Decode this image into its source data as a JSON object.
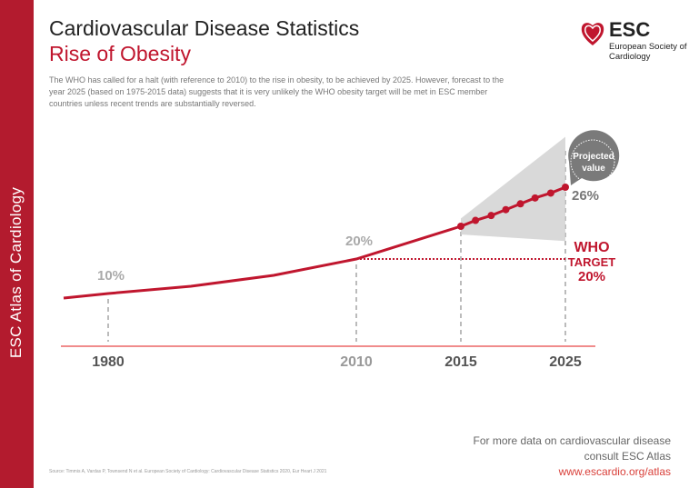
{
  "sidebar": {
    "label": "ESC Atlas of Cardiology"
  },
  "header": {
    "title": "Cardiovascular Disease Statistics",
    "subtitle": "Rise of Obesity",
    "description": "The WHO has called for a halt (with reference to 2010) to the rise in obesity, to be achieved by 2025. However, forecast to the year 2025 (based on 1975-2015 data) suggests that it is very unlikely the WHO obesity target will be met in ESC member countries unless recent trends are substantially reversed."
  },
  "logo": {
    "name": "ESC",
    "org": "European Society of Cardiology",
    "icon": "heart-icon"
  },
  "footer": {
    "more_line1": "For more data on cardiovascular disease",
    "more_line2": "consult ESC Atlas",
    "link": "www.escardio.org/atlas",
    "source": "Source: Timmis A, Vardas P, Townsend N et al. European Society of Cardiology: Cardiovascular Disease Statistics 2020, Eur Heart J 2021"
  },
  "colors": {
    "accent": "#c0162e",
    "sidebar": "#b31b2e",
    "axis": "#f08c8c",
    "gray": "#8a8a8a"
  },
  "chart_data": {
    "type": "line",
    "xlabel": "",
    "ylabel": "",
    "x_ticks": [
      "1980",
      "2010",
      "2015",
      "2025"
    ],
    "series": [
      {
        "x": [
          1975,
          1980,
          1990,
          2000,
          2010,
          2015
        ],
        "y": [
          9,
          10,
          12,
          15,
          20,
          22
        ]
      },
      {
        "x": [
          2015,
          2016.4,
          2017.9,
          2019.3,
          2020.7,
          2022.1,
          2023.6,
          2025
        ],
        "y": [
          22,
          22.6,
          23.1,
          23.7,
          24.3,
          24.9,
          25.4,
          26
        ],
        "markers": true
      }
    ],
    "projection_band": {
      "x": [
        2015,
        2025
      ],
      "upper": [
        22.8,
        31.2
      ],
      "lower": [
        21.5,
        21.1
      ]
    },
    "labels": [
      {
        "year": 1980,
        "text": "10%"
      },
      {
        "year": 2010,
        "text": "20%"
      },
      {
        "year": 2025,
        "text": "26%"
      }
    ],
    "callout": {
      "line1": "Projected",
      "line2": "value"
    },
    "target": {
      "value": 20,
      "from": 2010,
      "to": 2025,
      "line1": "WHO",
      "line2": "TARGET",
      "line3": "20%"
    }
  }
}
